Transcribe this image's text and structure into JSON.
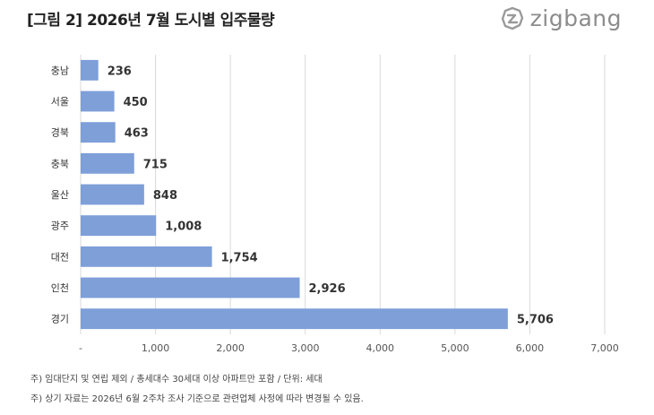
{
  "header": {
    "title": "[그림 2] 2026년 7월 도시별 입주물량",
    "logo_text": "zigbang"
  },
  "chart_data": {
    "type": "bar",
    "orientation": "horizontal",
    "categories": [
      "충남",
      "서울",
      "경북",
      "충북",
      "울산",
      "광주",
      "대전",
      "인천",
      "경기"
    ],
    "values": [
      236,
      450,
      463,
      715,
      848,
      1008,
      1754,
      2926,
      5706
    ],
    "value_labels": [
      "236",
      "450",
      "463",
      "715",
      "848",
      "1,008",
      "1,754",
      "2,926",
      "5,706"
    ],
    "xlim": [
      0,
      7000
    ],
    "x_ticks": [
      0,
      1000,
      2000,
      3000,
      4000,
      5000,
      6000,
      7000
    ],
    "x_tick_labels": [
      "-",
      "1,000",
      "2,000",
      "3,000",
      "4,000",
      "5,000",
      "6,000",
      "7,000"
    ],
    "grid": true,
    "bar_color": "#7e9fd8",
    "title": "[그림 2] 2026년 7월 도시별 입주물량"
  },
  "notes": [
    "주) 임대단지 및 연립 제외 / 총세대수 30세대 이상 아파트만 포함 / 단위: 세대",
    "주) 상기 자료는 2026년 6월 2주차 조사 기준으로 관련업체 사정에 따라 변경될 수 있음."
  ]
}
